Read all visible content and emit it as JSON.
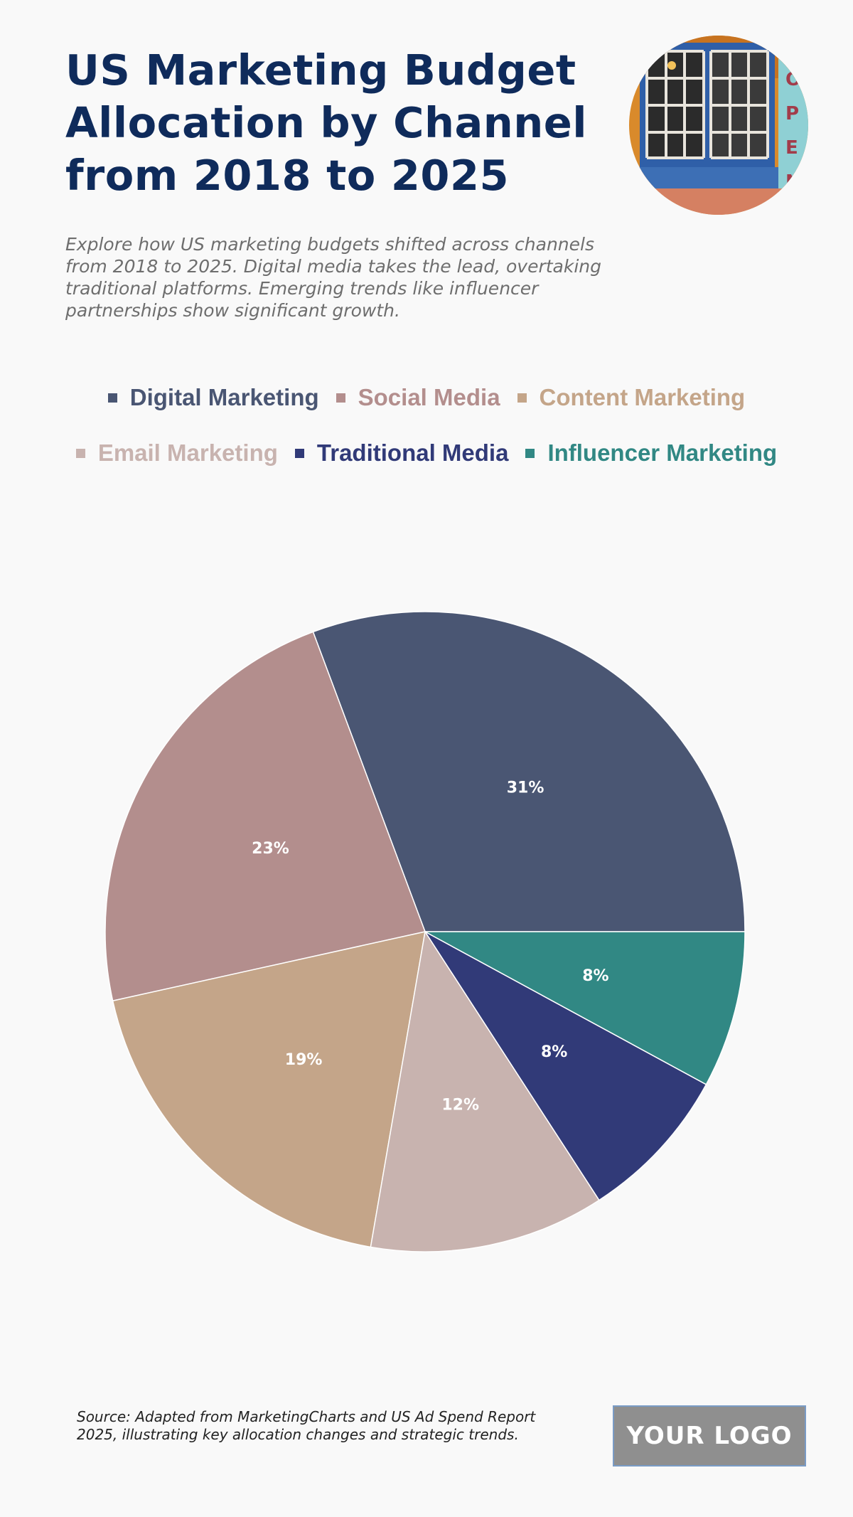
{
  "header": {
    "title": "US Marketing Budget Allocation by Channel from 2018 to 2025",
    "subtitle": "Explore how US marketing budgets shifted across channels from 2018 to 2025. Digital media takes the lead, overtaking traditional platforms. Emerging trends like influencer partnerships show significant growth."
  },
  "chart_data": {
    "type": "pie",
    "title": "",
    "legend_position": "top",
    "slices": [
      {
        "name": "Digital Marketing",
        "value": 31,
        "label": "31%",
        "color": "#4a5673"
      },
      {
        "name": "Social Media",
        "value": 23,
        "label": "23%",
        "color": "#b38e8d"
      },
      {
        "name": "Content Marketing",
        "value": 19,
        "label": "19%",
        "color": "#c4a589"
      },
      {
        "name": "Email Marketing",
        "value": 12,
        "label": "12%",
        "color": "#c8b3af"
      },
      {
        "name": "Traditional Media",
        "value": 8,
        "label": "8%",
        "color": "#313a78"
      },
      {
        "name": "Influencer Marketing",
        "value": 8,
        "label": "8%",
        "color": "#318884"
      }
    ]
  },
  "footer": {
    "source": "Source: Adapted from MarketingCharts and US Ad Spend Report 2025, illustrating key allocation changes and strategic trends.",
    "logo_text": "YOUR LOGO"
  }
}
